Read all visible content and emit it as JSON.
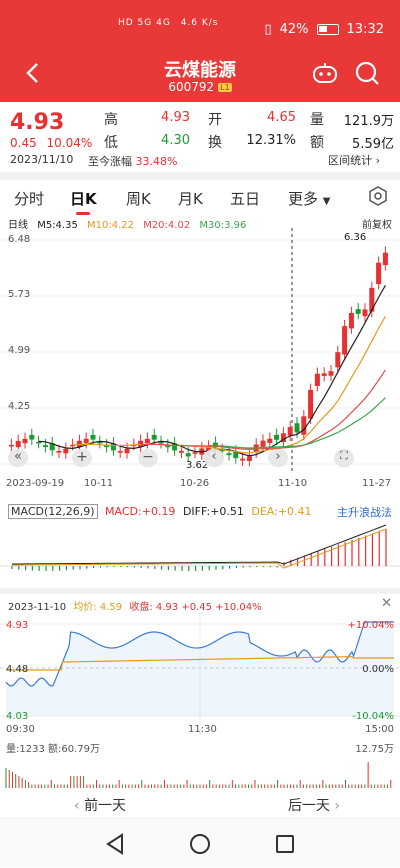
{
  "status": {
    "left_icons": "HD 5G 4G",
    "net_speed": "4.6 K/s",
    "battery": "42%",
    "time": "13:32"
  },
  "header": {
    "title": "云煤能源",
    "code": "600792",
    "tag": "L1"
  },
  "quote": {
    "price": "4.93",
    "change": "0.45",
    "change_pct": "10.04%",
    "labels": {
      "high": "高",
      "low": "低",
      "open": "开",
      "turnover": "换",
      "volume": "量",
      "amount": "额"
    },
    "high": "4.93",
    "low": "4.30",
    "open": "4.65",
    "turnover_rate": "12.31%",
    "volume": "121.9万",
    "amount": "5.59亿",
    "date": "2023/11/10",
    "since_limit_label": "至今涨幅",
    "since_limit_value": "33.48%",
    "stats_button": "区间统计"
  },
  "tabs": [
    "分时",
    "日K",
    "周K",
    "月K",
    "五日",
    "更多"
  ],
  "active_tab": "日K",
  "kline": {
    "period_label": "日线",
    "ma": [
      {
        "label": "M5:4.35",
        "color": "#222222"
      },
      {
        "label": "M10:4.22",
        "color": "#e39a1a"
      },
      {
        "label": "M20:4.02",
        "color": "#e04a4a"
      },
      {
        "label": "M30:3.96",
        "color": "#3aa84a"
      }
    ],
    "adjust": "前复权",
    "y_ticks": [
      "6.48",
      "5.73",
      "4.99",
      "4.25"
    ],
    "x_ticks": [
      "2023-09-19",
      "10-11",
      "10-26",
      "11-10",
      "11-27"
    ],
    "max_label": "6.36",
    "min_label": "3.62"
  },
  "macd": {
    "label": "MACD(12,26,9)",
    "macd": "MACD:+0.19",
    "diff": "DIFF:+0.51",
    "dea": "DEA:+0.41",
    "link": "主升浪战法"
  },
  "intraday": {
    "date": "2023-11-10",
    "avg": "均价: 4.59",
    "close": "收盘: 4.93 +0.45 +10.04%",
    "y_high": "4.93",
    "y_mid": "4.48",
    "y_low": "4.03",
    "pct_high": "+10.04%",
    "pct_mid": "0.00%",
    "pct_low": "-10.04%",
    "times": [
      "09:30",
      "11:30",
      "15:00"
    ],
    "vol_label": "量:1233",
    "amt_label": "额:60.79万",
    "vol_max": "12.75万"
  },
  "daynav": {
    "prev": "前一天",
    "next": "后一天"
  }
}
